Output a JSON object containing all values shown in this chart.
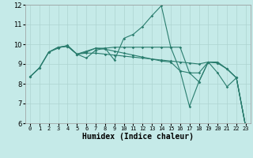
{
  "xlabel": "Humidex (Indice chaleur)",
  "bg_color": "#c5eae8",
  "line_color": "#2a7d6e",
  "grid_color": "#aed4d0",
  "xlim": [
    -0.5,
    23.5
  ],
  "ylim": [
    6,
    12
  ],
  "yticks": [
    6,
    7,
    8,
    9,
    10,
    11,
    12
  ],
  "xticks": [
    0,
    1,
    2,
    3,
    4,
    5,
    6,
    7,
    8,
    9,
    10,
    11,
    12,
    13,
    14,
    15,
    16,
    17,
    18,
    19,
    20,
    21,
    22,
    23
  ],
  "lines": [
    {
      "x": [
        0,
        1,
        2,
        3,
        4,
        5,
        6,
        7,
        8,
        9,
        10,
        11,
        12,
        13,
        14,
        15,
        16,
        17,
        18,
        19,
        20,
        21,
        22,
        23
      ],
      "y": [
        8.35,
        8.8,
        9.6,
        9.8,
        9.95,
        9.5,
        9.3,
        9.7,
        9.8,
        9.2,
        10.3,
        10.5,
        10.9,
        11.45,
        11.95,
        9.85,
        8.65,
        6.85,
        8.1,
        9.1,
        8.55,
        7.85,
        8.3,
        5.8
      ]
    },
    {
      "x": [
        0,
        1,
        2,
        3,
        4,
        5,
        6,
        7,
        8,
        9,
        10,
        11,
        12,
        13,
        14,
        15,
        16,
        17,
        18,
        19,
        20,
        21,
        22,
        23
      ],
      "y": [
        8.35,
        8.8,
        9.6,
        9.85,
        9.9,
        9.5,
        9.55,
        9.55,
        9.5,
        9.45,
        9.4,
        9.35,
        9.3,
        9.25,
        9.2,
        9.15,
        9.1,
        9.05,
        9.0,
        9.1,
        9.05,
        8.75,
        8.3,
        5.8
      ]
    },
    {
      "x": [
        0,
        1,
        2,
        3,
        4,
        5,
        6,
        7,
        8,
        9,
        10,
        11,
        12,
        13,
        14,
        15,
        16,
        17,
        18,
        19,
        20,
        21,
        22,
        23
      ],
      "y": [
        8.35,
        8.8,
        9.6,
        9.85,
        9.9,
        9.5,
        9.6,
        9.8,
        9.75,
        9.65,
        9.55,
        9.45,
        9.35,
        9.25,
        9.15,
        9.1,
        8.65,
        8.55,
        8.55,
        9.1,
        9.05,
        8.75,
        8.3,
        5.8
      ]
    },
    {
      "x": [
        3,
        4,
        5,
        6,
        7,
        8,
        9,
        10,
        11,
        12,
        13,
        14,
        15,
        16,
        17,
        18,
        19,
        20,
        21,
        22,
        23
      ],
      "y": [
        9.85,
        9.9,
        9.5,
        9.65,
        9.8,
        9.8,
        9.85,
        9.85,
        9.85,
        9.85,
        9.85,
        9.85,
        9.85,
        9.85,
        8.55,
        8.1,
        9.1,
        9.1,
        8.75,
        8.3,
        5.8
      ]
    }
  ]
}
